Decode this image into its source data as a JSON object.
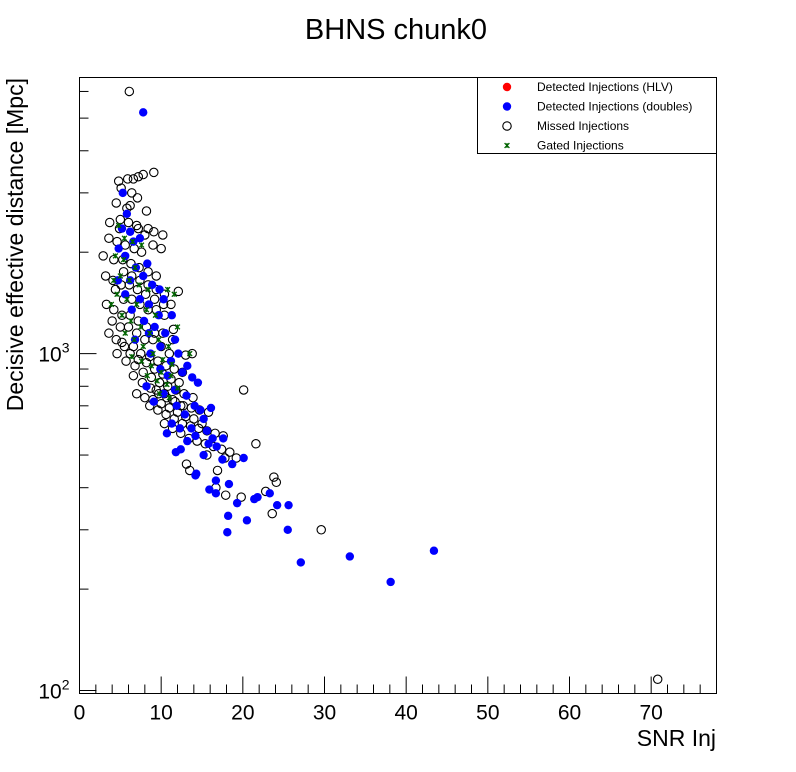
{
  "chart_data": {
    "type": "scatter",
    "title": "BHNS chunk0",
    "xlabel": "SNR Inj",
    "ylabel": "Decisive effective distance [Mpc]",
    "xlim": [
      0,
      78
    ],
    "ylim": [
      98,
      6600
    ],
    "y_scale": "log",
    "x_ticks": [
      0,
      10,
      20,
      30,
      40,
      50,
      60,
      70
    ],
    "y_ticks": [
      {
        "value": 100,
        "label": "10",
        "exp": "2"
      },
      {
        "value": 1000,
        "label": "10",
        "exp": "3"
      }
    ],
    "grid": false,
    "legend_position": "top-right",
    "legend": [
      {
        "label": "Detected Injections (HLV)",
        "marker": "filled-circle",
        "color": "#ff0000"
      },
      {
        "label": "Detected Injections (doubles)",
        "marker": "filled-circle",
        "color": "#0000ff"
      },
      {
        "label": "Missed Injections",
        "marker": "open-circle",
        "color": "#000000"
      },
      {
        "label": "Gated Injections",
        "marker": "star",
        "color": "#006400"
      }
    ],
    "series": [
      {
        "name": "Detected Injections (HLV)",
        "marker": "filled-circle",
        "color": "#ff0000",
        "points": []
      },
      {
        "name": "Detected Injections (doubles)",
        "marker": "filled-circle",
        "color": "#0000ff",
        "points": [
          [
            7.8,
            5200
          ],
          [
            5.3,
            3000
          ],
          [
            5.8,
            2600
          ],
          [
            5.2,
            2350
          ],
          [
            6.2,
            2300
          ],
          [
            7.4,
            2200
          ],
          [
            6.6,
            2150
          ],
          [
            4.8,
            2050
          ],
          [
            5.6,
            1950
          ],
          [
            8.3,
            1850
          ],
          [
            6.9,
            1800
          ],
          [
            7.8,
            1700
          ],
          [
            4.7,
            1650
          ],
          [
            6.2,
            1650
          ],
          [
            8.9,
            1600
          ],
          [
            9.8,
            1550
          ],
          [
            5.6,
            1500
          ],
          [
            7.4,
            1450
          ],
          [
            10.3,
            1450
          ],
          [
            8.5,
            1400
          ],
          [
            6.4,
            1350
          ],
          [
            9.7,
            1300
          ],
          [
            11.3,
            1300
          ],
          [
            7.9,
            1250
          ],
          [
            9.2,
            1200
          ],
          [
            10.5,
            1150
          ],
          [
            8.5,
            1150
          ],
          [
            11.7,
            1100
          ],
          [
            6.8,
            1100
          ],
          [
            9.9,
            1050
          ],
          [
            12.1,
            1000
          ],
          [
            8.7,
            1000
          ],
          [
            11.2,
            950
          ],
          [
            13.2,
            920
          ],
          [
            9.9,
            900
          ],
          [
            12.6,
            880
          ],
          [
            10.8,
            860
          ],
          [
            13.8,
            850
          ],
          [
            14.5,
            820
          ],
          [
            8.2,
            800
          ],
          [
            11.7,
            780
          ],
          [
            10.3,
            760
          ],
          [
            13.1,
            750
          ],
          [
            9.1,
            720
          ],
          [
            11.9,
            700
          ],
          [
            14.1,
            700
          ],
          [
            16.1,
            690
          ],
          [
            14.8,
            680
          ],
          [
            12.9,
            660
          ],
          [
            15.2,
            640
          ],
          [
            11.3,
            620
          ],
          [
            13.7,
            600
          ],
          [
            12.3,
            600
          ],
          [
            15.6,
            590
          ],
          [
            10.7,
            580
          ],
          [
            14.2,
            570
          ],
          [
            16.3,
            560
          ],
          [
            17.6,
            560
          ],
          [
            13.2,
            550
          ],
          [
            15.8,
            540
          ],
          [
            16.8,
            530
          ],
          [
            12.4,
            520
          ],
          [
            11.8,
            510
          ],
          [
            15.2,
            500
          ],
          [
            20.1,
            490
          ],
          [
            17.5,
            485
          ],
          [
            18.7,
            470
          ],
          [
            14.3,
            440
          ],
          [
            16.7,
            420
          ],
          [
            14.2,
            435
          ],
          [
            18.3,
            410
          ],
          [
            15.9,
            395
          ],
          [
            16.7,
            385
          ],
          [
            23.3,
            385
          ],
          [
            21.8,
            375
          ],
          [
            21.4,
            370
          ],
          [
            19.3,
            360
          ],
          [
            24.2,
            355
          ],
          [
            25.6,
            355
          ],
          [
            18.2,
            330
          ],
          [
            20.5,
            320
          ],
          [
            25.5,
            300
          ],
          [
            18.1,
            295
          ],
          [
            43.4,
            260
          ],
          [
            33.1,
            250
          ],
          [
            27.1,
            240
          ],
          [
            38.1,
            210
          ]
        ]
      },
      {
        "name": "Missed Injections",
        "marker": "open-circle",
        "color": "#000000",
        "points": [
          [
            6.1,
            6000
          ],
          [
            9.1,
            3450
          ],
          [
            4.8,
            3250
          ],
          [
            5.9,
            3300
          ],
          [
            6.6,
            3300
          ],
          [
            7.2,
            3350
          ],
          [
            7.8,
            3400
          ],
          [
            5.1,
            3100
          ],
          [
            6.4,
            3000
          ],
          [
            7.1,
            2900
          ],
          [
            4.5,
            2800
          ],
          [
            6.2,
            2750
          ],
          [
            8.2,
            2650
          ],
          [
            5.8,
            2700
          ],
          [
            3.7,
            2450
          ],
          [
            4.9,
            2350
          ],
          [
            7.2,
            2350
          ],
          [
            8.4,
            2350
          ],
          [
            9.1,
            2300
          ],
          [
            10.2,
            2250
          ],
          [
            3.6,
            2200
          ],
          [
            4.6,
            2150
          ],
          [
            5.6,
            2100
          ],
          [
            6.7,
            2050
          ],
          [
            7.6,
            2000
          ],
          [
            2.9,
            1950
          ],
          [
            4.2,
            1900
          ],
          [
            5.3,
            1900
          ],
          [
            6.3,
            1850
          ],
          [
            7.3,
            1800
          ],
          [
            8.4,
            1750
          ],
          [
            9.4,
            1700
          ],
          [
            3.2,
            1700
          ],
          [
            4.1,
            1650
          ],
          [
            5.1,
            1600
          ],
          [
            6.1,
            1600
          ],
          [
            7.1,
            1550
          ],
          [
            8.1,
            1500
          ],
          [
            9.2,
            1450
          ],
          [
            10.3,
            1400
          ],
          [
            11.2,
            1400
          ],
          [
            3.3,
            1400
          ],
          [
            4.2,
            1350
          ],
          [
            5.2,
            1300
          ],
          [
            6.2,
            1300
          ],
          [
            7.2,
            1250
          ],
          [
            8.2,
            1200
          ],
          [
            9.2,
            1150
          ],
          [
            10.2,
            1150
          ],
          [
            11.4,
            1100
          ],
          [
            3.6,
            1150
          ],
          [
            4.5,
            1100
          ],
          [
            5.5,
            1050
          ],
          [
            6.6,
            1050
          ],
          [
            7.5,
            1000
          ],
          [
            8.6,
            980
          ],
          [
            9.6,
            950
          ],
          [
            10.6,
            920
          ],
          [
            11.6,
            900
          ],
          [
            12.6,
            880
          ],
          [
            4.6,
            1000
          ],
          [
            5.7,
            950
          ],
          [
            6.8,
            920
          ],
          [
            7.8,
            880
          ],
          [
            8.8,
            850
          ],
          [
            9.8,
            820
          ],
          [
            10.8,
            800
          ],
          [
            11.8,
            780
          ],
          [
            12.8,
            760
          ],
          [
            13.9,
            740
          ],
          [
            6.6,
            860
          ],
          [
            7.7,
            820
          ],
          [
            8.7,
            790
          ],
          [
            9.7,
            760
          ],
          [
            10.7,
            740
          ],
          [
            11.7,
            720
          ],
          [
            12.7,
            700
          ],
          [
            13.7,
            690
          ],
          [
            14.7,
            680
          ],
          [
            15.8,
            670
          ],
          [
            8.6,
            700
          ],
          [
            9.6,
            680
          ],
          [
            10.6,
            660
          ],
          [
            11.6,
            640
          ],
          [
            12.6,
            620
          ],
          [
            13.6,
            610
          ],
          [
            14.6,
            600
          ],
          [
            15.6,
            590
          ],
          [
            16.6,
            580
          ],
          [
            17.6,
            570
          ],
          [
            10.4,
            620
          ],
          [
            11.4,
            600
          ],
          [
            12.4,
            580
          ],
          [
            13.4,
            560
          ],
          [
            14.4,
            550
          ],
          [
            15.4,
            540
          ],
          [
            16.4,
            530
          ],
          [
            17.4,
            520
          ],
          [
            18.4,
            510
          ],
          [
            21.6,
            540
          ],
          [
            13.1,
            470
          ],
          [
            13.5,
            450
          ],
          [
            15.6,
            500
          ],
          [
            16.9,
            450
          ],
          [
            17.8,
            490
          ],
          [
            19.2,
            490
          ],
          [
            16.7,
            400
          ],
          [
            17.9,
            380
          ],
          [
            19.8,
            375
          ],
          [
            22.8,
            390
          ],
          [
            23.8,
            430
          ],
          [
            24.1,
            415
          ],
          [
            23.6,
            335
          ],
          [
            29.6,
            300
          ],
          [
            20.1,
            780
          ],
          [
            13.8,
            1000
          ],
          [
            11.5,
            1180
          ],
          [
            12.1,
            1530
          ],
          [
            13.0,
            990
          ],
          [
            70.8,
            108
          ],
          [
            5.0,
            2500
          ],
          [
            6.0,
            2450
          ],
          [
            7.0,
            2400
          ],
          [
            8.0,
            2250
          ],
          [
            9.0,
            2100
          ],
          [
            10.0,
            2050
          ],
          [
            5.4,
            1750
          ],
          [
            6.4,
            1700
          ],
          [
            7.4,
            1650
          ],
          [
            8.4,
            1600
          ],
          [
            9.4,
            1550
          ],
          [
            10.4,
            1500
          ],
          [
            4.4,
            1550
          ],
          [
            5.4,
            1450
          ],
          [
            6.4,
            1450
          ],
          [
            7.4,
            1400
          ],
          [
            8.4,
            1350
          ],
          [
            9.4,
            1350
          ],
          [
            10.4,
            1300
          ],
          [
            4.0,
            1250
          ],
          [
            5.0,
            1200
          ],
          [
            6.0,
            1200
          ],
          [
            7.0,
            1150
          ],
          [
            8.0,
            1100
          ],
          [
            9.0,
            1100
          ],
          [
            10.0,
            1050
          ],
          [
            11.0,
            1000
          ],
          [
            5.2,
            1080
          ],
          [
            6.2,
            1000
          ],
          [
            7.2,
            960
          ],
          [
            8.2,
            940
          ],
          [
            9.2,
            900
          ],
          [
            10.2,
            870
          ],
          [
            11.2,
            840
          ],
          [
            12.2,
            820
          ],
          [
            7.0,
            760
          ],
          [
            8.0,
            740
          ],
          [
            9.0,
            730
          ],
          [
            10.0,
            710
          ],
          [
            11.0,
            690
          ],
          [
            12.0,
            670
          ],
          [
            13.0,
            650
          ],
          [
            14.0,
            640
          ],
          [
            15.0,
            620
          ],
          [
            9.4,
            780
          ],
          [
            10.4,
            760
          ],
          [
            11.4,
            730
          ],
          [
            12.4,
            700
          ]
        ]
      },
      {
        "name": "Gated Injections",
        "marker": "star",
        "color": "#006400",
        "points": [
          [
            4.8,
            2400
          ],
          [
            5.5,
            2200
          ],
          [
            6.5,
            2150
          ],
          [
            7.6,
            2100
          ],
          [
            4.4,
            1950
          ],
          [
            5.4,
            1900
          ],
          [
            6.8,
            1800
          ],
          [
            5.0,
            1700
          ],
          [
            6.1,
            1650
          ],
          [
            7.3,
            1600
          ],
          [
            8.4,
            1550
          ],
          [
            4.6,
            1500
          ],
          [
            5.8,
            1450
          ],
          [
            7.0,
            1400
          ],
          [
            8.2,
            1350
          ],
          [
            9.3,
            1300
          ],
          [
            10.8,
            1550
          ],
          [
            11.6,
            1500
          ],
          [
            12.0,
            1200
          ],
          [
            5.2,
            1300
          ],
          [
            6.3,
            1250
          ],
          [
            7.5,
            1200
          ],
          [
            8.6,
            1150
          ],
          [
            9.7,
            1100
          ],
          [
            10.9,
            1050
          ],
          [
            5.6,
            1150
          ],
          [
            6.7,
            1100
          ],
          [
            7.8,
            1050
          ],
          [
            9.0,
            1000
          ],
          [
            10.2,
            960
          ],
          [
            11.3,
            930
          ],
          [
            13.5,
            1000
          ],
          [
            6.4,
            980
          ],
          [
            7.6,
            950
          ],
          [
            8.8,
            920
          ],
          [
            10.0,
            880
          ],
          [
            11.2,
            860
          ],
          [
            8.3,
            860
          ],
          [
            9.5,
            830
          ],
          [
            10.7,
            810
          ],
          [
            12.0,
            790
          ],
          [
            9.8,
            760
          ],
          [
            11.0,
            740
          ],
          [
            4.2,
            1650
          ],
          [
            3.9,
            1400
          ]
        ]
      }
    ]
  }
}
